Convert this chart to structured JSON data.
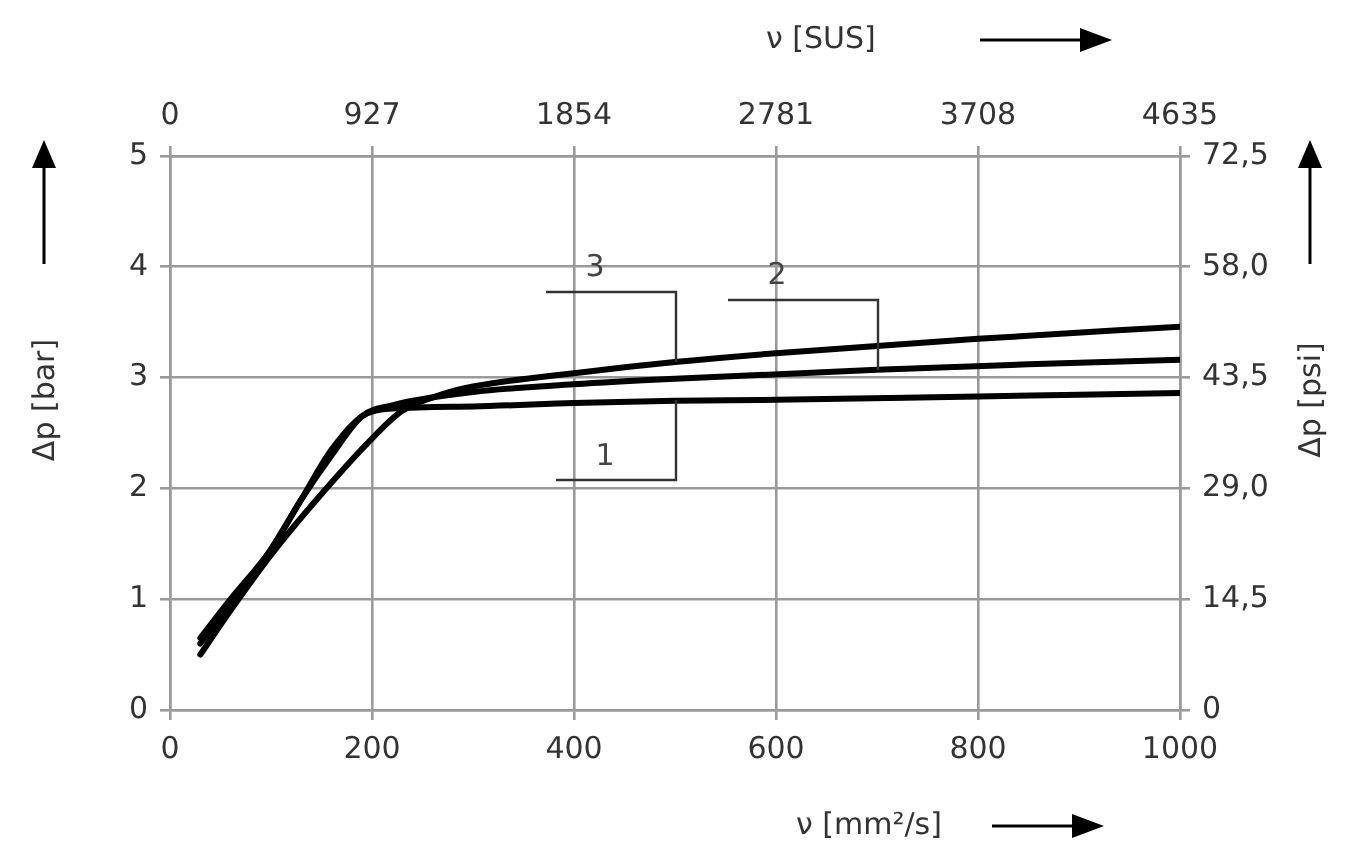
{
  "chart_data": {
    "type": "line",
    "xlabel": "ν  [mm²/s]",
    "x2label": "ν  [SUS]",
    "ylabel": "Δp [bar]",
    "y2label": "Δp [psi]",
    "xlim": [
      0,
      1000
    ],
    "xticks": [
      0,
      200,
      400,
      600,
      800,
      1000
    ],
    "x2lim": [
      0,
      4635
    ],
    "x2ticks": [
      0,
      927,
      1854,
      2781,
      3708,
      4635
    ],
    "ylim": [
      0,
      5
    ],
    "yticks": [
      0,
      1,
      2,
      3,
      4,
      5
    ],
    "y2lim": [
      0,
      72.5
    ],
    "y2ticks": [
      0,
      {
        "value": 14.5,
        "label": "14,5"
      },
      {
        "value": 29,
        "label": "29,0"
      },
      {
        "value": 43.5,
        "label": "43,5"
      },
      {
        "value": 58,
        "label": "58,0"
      },
      {
        "value": 72.5,
        "label": "72,5"
      }
    ],
    "grid": true,
    "legend": false,
    "marker": "none",
    "line_style": "solid",
    "series": [
      {
        "name": "1",
        "color": "#000000",
        "x": [
          30,
          60,
          100,
          130,
          160,
          190,
          220,
          300,
          400,
          500,
          600,
          800,
          1000
        ],
        "values": [
          0.65,
          1.0,
          1.45,
          1.9,
          2.35,
          2.65,
          2.72,
          2.74,
          2.77,
          2.79,
          2.8,
          2.83,
          2.86
        ]
      },
      {
        "name": "2",
        "color": "#000000",
        "x": [
          30,
          60,
          100,
          130,
          160,
          190,
          220,
          300,
          400,
          500,
          700,
          850,
          1000
        ],
        "values": [
          0.6,
          0.95,
          1.45,
          1.9,
          2.3,
          2.65,
          2.75,
          2.87,
          2.94,
          2.99,
          3.07,
          3.12,
          3.16
        ]
      },
      {
        "name": "3",
        "color": "#000000",
        "x": [
          30,
          60,
          100,
          150,
          200,
          230,
          270,
          300,
          400,
          500,
          600,
          800,
          1000
        ],
        "values": [
          0.5,
          0.9,
          1.4,
          1.95,
          2.45,
          2.7,
          2.85,
          2.92,
          3.04,
          3.14,
          3.22,
          3.35,
          3.46
        ]
      }
    ]
  }
}
